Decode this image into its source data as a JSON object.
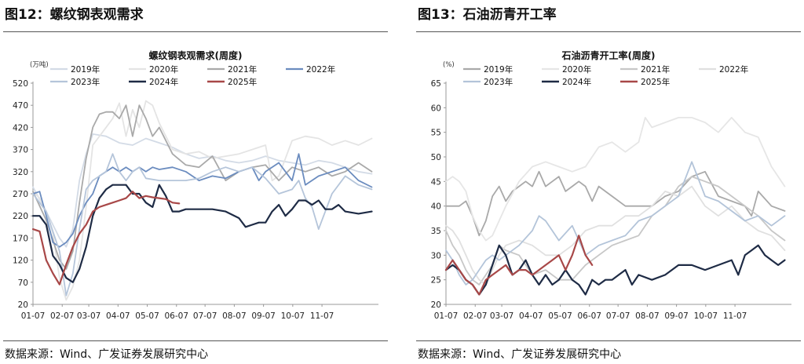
{
  "left": {
    "figure_title": "图12：螺纹钢表观需求",
    "source": "数据来源：Wind、广发证券发展研究中心"
  },
  "right": {
    "figure_title": "图13：石油沥青开工率",
    "source": "数据来源：Wind、广发证券发展研究中心"
  },
  "chart_data": [
    {
      "type": "line",
      "title": "螺纹钢表观需求(周度)",
      "unit_label": "(万吨)",
      "xlabel": "",
      "ylabel": "",
      "ylim": [
        20,
        520
      ],
      "yticks": [
        20,
        70,
        120,
        170,
        220,
        270,
        320,
        370,
        420,
        470,
        520
      ],
      "xlim": [
        1,
        53
      ],
      "x_tick_labels": [
        "01-07",
        "02-07",
        "03-07",
        "04-07",
        "05-07",
        "06-07",
        "07-07",
        "08-07",
        "09-07",
        "10-07",
        "11-07"
      ],
      "x_tick_pos": [
        1,
        5.4,
        9.4,
        13.8,
        18.2,
        22.6,
        26.9,
        31.3,
        35.7,
        40.1,
        44.5
      ],
      "grid": false,
      "legend_position": "top",
      "series": [
        {
          "name": "2019年",
          "color": "#d3dbe6",
          "width": 1.8,
          "x": [
            1,
            3,
            5,
            6,
            7,
            8,
            9,
            10,
            12,
            14,
            16,
            18,
            20,
            22,
            24,
            26,
            28,
            30,
            32,
            34,
            36,
            38,
            40,
            42,
            44,
            46,
            48,
            50,
            52
          ],
          "y": [
            285,
            230,
            170,
            150,
            190,
            300,
            360,
            405,
            400,
            385,
            380,
            395,
            385,
            375,
            360,
            350,
            355,
            345,
            340,
            345,
            355,
            345,
            340,
            335,
            345,
            340,
            330,
            320,
            315
          ]
        },
        {
          "name": "2020年",
          "color": "#e4e4e4",
          "width": 1.8,
          "x": [
            1,
            2,
            3,
            4,
            5,
            6,
            7,
            8,
            9,
            10,
            12,
            13,
            14,
            15,
            16,
            17,
            18,
            19,
            20,
            21,
            22,
            24,
            26,
            28,
            30,
            32,
            34,
            36,
            37,
            38,
            40,
            42,
            44,
            46,
            48,
            50,
            52
          ],
          "y": [
            275,
            260,
            230,
            180,
            80,
            30,
            60,
            120,
            240,
            380,
            420,
            440,
            475,
            400,
            460,
            420,
            480,
            470,
            430,
            400,
            370,
            360,
            365,
            350,
            355,
            360,
            370,
            380,
            300,
            310,
            390,
            400,
            395,
            380,
            390,
            380,
            395
          ]
        },
        {
          "name": "2021年",
          "color": "#a9a9a9",
          "width": 1.8,
          "x": [
            1,
            3,
            5,
            6,
            7,
            8,
            9,
            10,
            11,
            12,
            13,
            14,
            15,
            16,
            17,
            18,
            19,
            20,
            22,
            24,
            26,
            28,
            30,
            32,
            34,
            36,
            38,
            40,
            42,
            44,
            46,
            48,
            50,
            52
          ],
          "y": [
            275,
            210,
            120,
            100,
            140,
            250,
            350,
            420,
            450,
            455,
            455,
            440,
            470,
            400,
            470,
            440,
            400,
            420,
            360,
            335,
            330,
            355,
            300,
            320,
            330,
            335,
            300,
            330,
            320,
            330,
            310,
            320,
            340,
            320
          ]
        },
        {
          "name": "2022年",
          "color": "#6b8cbf",
          "width": 1.8,
          "x": [
            1,
            2,
            3,
            4,
            5,
            6,
            7,
            8,
            9,
            10,
            11,
            12,
            13,
            14,
            15,
            16,
            17,
            18,
            19,
            20,
            22,
            24,
            26,
            28,
            30,
            32,
            34,
            35,
            36,
            38,
            40,
            41,
            42,
            44,
            46,
            48,
            50,
            52
          ],
          "y": [
            270,
            275,
            220,
            160,
            150,
            160,
            180,
            220,
            250,
            270,
            310,
            320,
            330,
            320,
            330,
            320,
            330,
            320,
            330,
            325,
            330,
            320,
            300,
            310,
            305,
            320,
            330,
            300,
            320,
            340,
            300,
            360,
            290,
            310,
            320,
            330,
            300,
            285
          ]
        },
        {
          "name": "2023年",
          "color": "#b5c5da",
          "width": 1.8,
          "x": [
            1,
            3,
            5,
            6,
            7,
            8,
            9,
            10,
            12,
            13,
            14,
            15,
            16,
            17,
            18,
            20,
            22,
            24,
            26,
            28,
            30,
            32,
            34,
            36,
            38,
            40,
            41,
            42,
            43,
            44,
            46,
            48,
            50,
            52
          ],
          "y": [
            270,
            230,
            140,
            40,
            90,
            190,
            280,
            300,
            320,
            360,
            320,
            300,
            320,
            330,
            305,
            300,
            300,
            300,
            305,
            320,
            330,
            320,
            330,
            305,
            270,
            280,
            300,
            260,
            240,
            190,
            270,
            310,
            290,
            280
          ]
        },
        {
          "name": "2024年",
          "color": "#1e2b45",
          "width": 2.2,
          "x": [
            1,
            2,
            3,
            4,
            5,
            6,
            7,
            8,
            9,
            10,
            11,
            12,
            13,
            14,
            15,
            16,
            17,
            18,
            19,
            20,
            21,
            22,
            23,
            24,
            26,
            28,
            30,
            32,
            33,
            34,
            35,
            36,
            37,
            38,
            39,
            40,
            41,
            42,
            43,
            44,
            45,
            46,
            47,
            48,
            50,
            52
          ],
          "y": [
            220,
            220,
            200,
            130,
            110,
            80,
            70,
            100,
            150,
            220,
            260,
            280,
            290,
            290,
            290,
            270,
            270,
            250,
            240,
            290,
            265,
            230,
            230,
            235,
            235,
            235,
            230,
            215,
            195,
            200,
            205,
            205,
            230,
            245,
            220,
            235,
            255,
            255,
            245,
            255,
            235,
            235,
            245,
            230,
            225,
            230
          ]
        },
        {
          "name": "2025年",
          "color": "#a84848",
          "width": 2.2,
          "x": [
            1,
            2,
            3,
            4,
            5,
            6,
            7,
            8,
            9,
            10,
            11,
            12,
            13,
            14,
            15,
            16,
            17,
            18,
            19,
            20,
            21,
            22,
            23
          ],
          "y": [
            190,
            185,
            120,
            90,
            65,
            110,
            150,
            180,
            200,
            230,
            240,
            245,
            250,
            255,
            260,
            275,
            260,
            265,
            262,
            260,
            258,
            250,
            248
          ]
        }
      ]
    },
    {
      "type": "line",
      "title": "石油沥青开工率(周度)",
      "unit_label": "(%)",
      "xlabel": "",
      "ylabel": "",
      "ylim": [
        20,
        65
      ],
      "yticks": [
        20,
        25,
        30,
        35,
        40,
        45,
        50,
        55,
        60,
        65
      ],
      "xlim": [
        1,
        53
      ],
      "x_tick_labels": [
        "01-07",
        "02-07",
        "03-07",
        "04-07",
        "05-07",
        "06-07",
        "07-07",
        "08-07",
        "09-07",
        "10-07",
        "11-07"
      ],
      "x_tick_pos": [
        1,
        5.4,
        9.4,
        13.8,
        18.2,
        22.6,
        26.9,
        31.3,
        35.7,
        40.1,
        44.5
      ],
      "grid": false,
      "legend_position": "top",
      "series": [
        {
          "name": "2019年",
          "color": "#a9a9a9",
          "width": 1.8,
          "x": [
            1,
            2,
            3,
            4,
            5,
            6,
            7,
            8,
            9,
            10,
            11,
            12,
            13,
            14,
            15,
            16,
            17,
            18,
            19,
            20,
            21,
            22,
            23,
            24,
            26,
            28,
            30,
            32,
            34,
            36,
            38,
            40,
            42,
            44,
            46,
            47,
            48,
            50,
            52
          ],
          "y": [
            40,
            40,
            40,
            41,
            38,
            34,
            37,
            42,
            44,
            41,
            43,
            44,
            45,
            44,
            47,
            44,
            45,
            46,
            43,
            44,
            45,
            44,
            41,
            44,
            42,
            40,
            40,
            40,
            42,
            43,
            46,
            47,
            42,
            41,
            40,
            38,
            43,
            40,
            39
          ]
        },
        {
          "name": "2020年",
          "color": "#e6e6e6",
          "width": 1.8,
          "x": [
            1,
            2,
            3,
            4,
            5,
            6,
            7,
            8,
            9,
            10,
            12,
            14,
            16,
            18,
            20,
            22,
            24,
            26,
            28,
            30,
            31,
            32,
            34,
            36,
            38,
            40,
            42,
            44,
            46,
            48,
            50,
            52
          ],
          "y": [
            45,
            46,
            45,
            43,
            38,
            35,
            33,
            34,
            37,
            40,
            45,
            48,
            49,
            48,
            47,
            48,
            52,
            53,
            51,
            53,
            58,
            56,
            57,
            58,
            58,
            57,
            55,
            58,
            55,
            54,
            48,
            44
          ]
        },
        {
          "name": "2021年",
          "color": "#c7c7c7",
          "width": 1.8,
          "x": [
            1,
            2,
            3,
            4,
            5,
            6,
            7,
            8,
            9,
            10,
            12,
            14,
            16,
            18,
            20,
            22,
            24,
            26,
            28,
            30,
            32,
            34,
            36,
            38,
            40,
            42,
            44,
            46,
            48,
            50,
            52
          ],
          "y": [
            35,
            32,
            30,
            27,
            25,
            24,
            26,
            28,
            32,
            31,
            30,
            26,
            27,
            25,
            25,
            28,
            30,
            32,
            33,
            34,
            38,
            40,
            44,
            46,
            45,
            44,
            42,
            40,
            38,
            35,
            33
          ]
        },
        {
          "name": "2022年",
          "color": "#e0e0e0",
          "width": 1.8,
          "x": [
            1,
            2,
            3,
            4,
            5,
            6,
            7,
            8,
            9,
            10,
            12,
            14,
            16,
            18,
            20,
            22,
            24,
            26,
            28,
            30,
            32,
            34,
            36,
            38,
            40,
            42,
            44,
            46,
            48,
            50,
            52
          ],
          "y": [
            36,
            35,
            33,
            30,
            27,
            25,
            24,
            27,
            30,
            32,
            33,
            32,
            30,
            30,
            32,
            35,
            36,
            36,
            38,
            38,
            40,
            43,
            42,
            44,
            40,
            38,
            40,
            37,
            35,
            34,
            31
          ]
        },
        {
          "name": "2023年",
          "color": "#b3c4d9",
          "width": 1.8,
          "x": [
            1,
            2,
            3,
            4,
            5,
            6,
            7,
            8,
            9,
            10,
            12,
            14,
            15,
            16,
            17,
            18,
            20,
            22,
            24,
            26,
            28,
            30,
            32,
            34,
            36,
            38,
            40,
            42,
            44,
            46,
            48,
            50,
            52
          ],
          "y": [
            31,
            29,
            26,
            24,
            25,
            27,
            29,
            30,
            29,
            30,
            32,
            35,
            38,
            37,
            35,
            33,
            36,
            30,
            32,
            33,
            34,
            37,
            38,
            40,
            42,
            49,
            42,
            41,
            39,
            37,
            38,
            36,
            38
          ]
        },
        {
          "name": "2024年",
          "color": "#1e2b45",
          "width": 2.2,
          "x": [
            1,
            2,
            3,
            4,
            5,
            6,
            7,
            8,
            9,
            10,
            11,
            12,
            13,
            14,
            15,
            16,
            17,
            18,
            19,
            20,
            21,
            22,
            23,
            24,
            25,
            26,
            27,
            28,
            29,
            30,
            32,
            34,
            36,
            38,
            40,
            42,
            44,
            45,
            46,
            47,
            48,
            49,
            50,
            51,
            52
          ],
          "y": [
            27,
            28,
            27,
            25,
            24,
            22,
            24,
            28,
            32,
            30,
            26,
            27,
            29,
            26,
            24,
            26,
            24,
            25,
            27,
            25,
            24,
            22,
            25,
            24,
            25,
            25,
            26,
            27,
            24,
            26,
            25,
            26,
            28,
            28,
            27,
            28,
            29,
            26,
            30,
            31,
            32,
            30,
            29,
            28,
            29
          ]
        },
        {
          "name": "2025年",
          "color": "#a84848",
          "width": 2.2,
          "x": [
            1,
            2,
            3,
            4,
            5,
            6,
            7,
            8,
            9,
            10,
            11,
            12,
            13,
            14,
            15,
            16,
            17,
            18,
            19,
            20,
            21,
            22,
            23
          ],
          "y": [
            27,
            29,
            27,
            25,
            24,
            22,
            25,
            26,
            27,
            28,
            26,
            27,
            27,
            26,
            27,
            28,
            29,
            30,
            27,
            30,
            34,
            30,
            28
          ]
        }
      ]
    }
  ]
}
